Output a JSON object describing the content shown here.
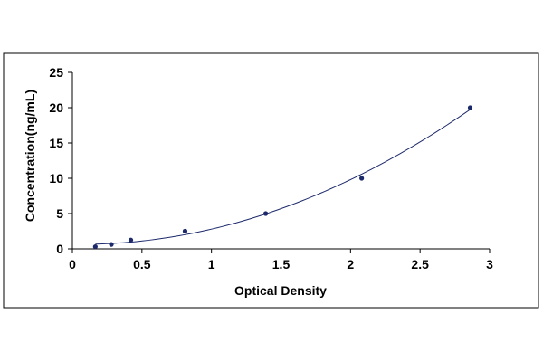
{
  "chart_data": {
    "type": "scatter",
    "title": "",
    "xlabel": "Optical Density",
    "ylabel": "Concentration(ng/mL)",
    "xlim": [
      0,
      3
    ],
    "ylim": [
      0,
      25
    ],
    "x_ticks": [
      "0",
      "0.5",
      "1",
      "1.5",
      "2",
      "2.5",
      "3"
    ],
    "y_ticks": [
      "0",
      "5",
      "10",
      "15",
      "20",
      "25"
    ],
    "grid": false,
    "legend": "none",
    "series": [
      {
        "points": [
          {
            "x": 0.165,
            "y": 0.31
          },
          {
            "x": 0.28,
            "y": 0.625
          },
          {
            "x": 0.42,
            "y": 1.25
          },
          {
            "x": 0.81,
            "y": 2.5
          },
          {
            "x": 1.39,
            "y": 5
          },
          {
            "x": 2.08,
            "y": 10
          },
          {
            "x": 2.86,
            "y": 20
          }
        ],
        "trendline": "smooth curve fit",
        "color": "#1c2a6b"
      }
    ],
    "colors": {
      "points": "#1c2a6b",
      "curve": "#1c2a6b",
      "axes": "#000000",
      "frame": "#000000"
    }
  }
}
